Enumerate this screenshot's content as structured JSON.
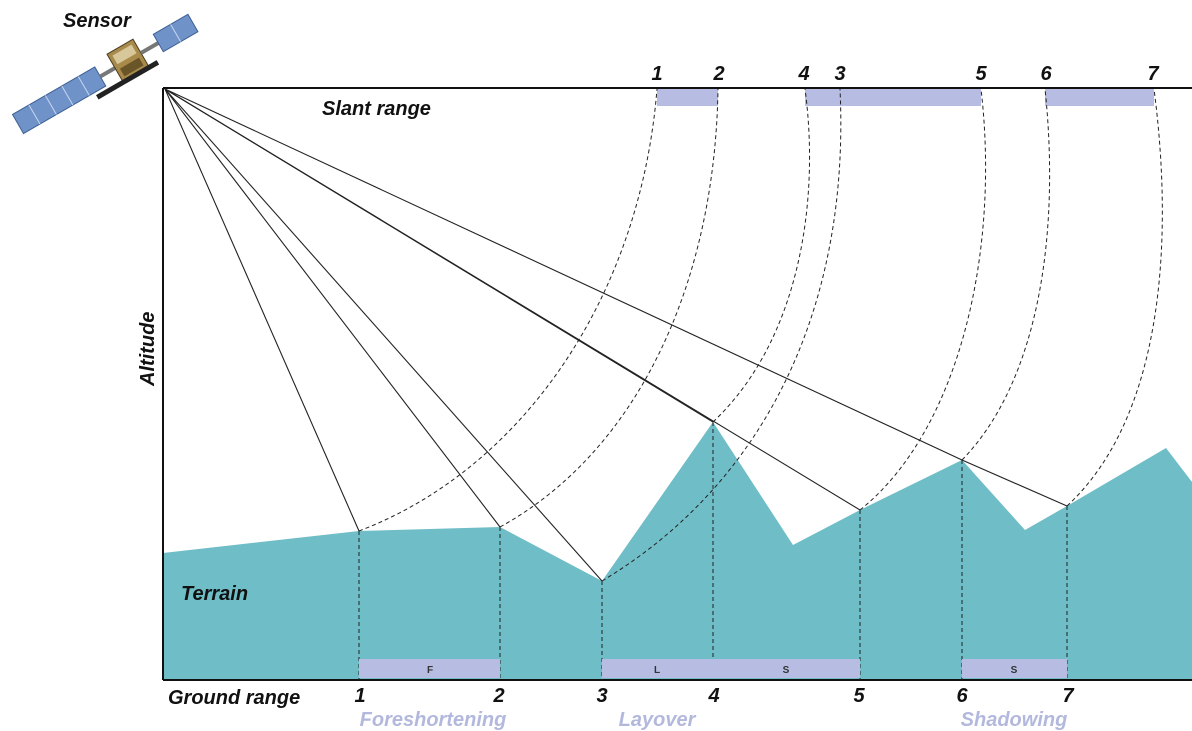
{
  "labels": {
    "sensor": "Sensor",
    "slant_range": "Slant range",
    "altitude": "Altitude",
    "terrain": "Terrain",
    "ground_range": "Ground range"
  },
  "slant_numbers": [
    "1",
    "2",
    "4",
    "3",
    "5",
    "6",
    "7"
  ],
  "ground_numbers": [
    "1",
    "2",
    "3",
    "4",
    "5",
    "6",
    "7"
  ],
  "ground_bars": [
    {
      "text": "F"
    },
    {
      "text": "L"
    },
    {
      "text": "S"
    },
    {
      "text": "S"
    }
  ],
  "effects": [
    {
      "text": "Foreshortening"
    },
    {
      "text": "Layover"
    },
    {
      "text": "Shadowing"
    }
  ],
  "colors": {
    "terrain": "#6fbdc7",
    "bar": "#b7bde2",
    "effect_text": "#b3b8dd",
    "line": "#222222"
  },
  "icons": [
    "satellite-icon"
  ]
}
